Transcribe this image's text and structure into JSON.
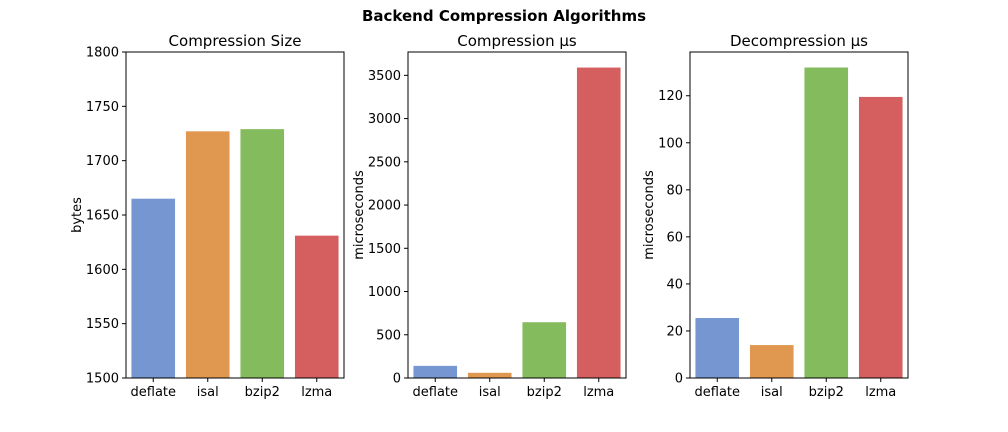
{
  "title": "Backend Compression Algorithms",
  "colors": [
    "#7596d0",
    "#e0974f",
    "#84bb5c",
    "#d55f5f"
  ],
  "chart_data": [
    {
      "type": "bar",
      "title": "Compression Size",
      "ylabel": "bytes",
      "xlabel": "",
      "categories": [
        "deflate",
        "isal",
        "bzip2",
        "lzma"
      ],
      "values": [
        1665,
        1727,
        1729,
        1631
      ],
      "ylim": [
        1500,
        1800
      ],
      "yticks": [
        1500,
        1550,
        1600,
        1650,
        1700,
        1750,
        1800
      ]
    },
    {
      "type": "bar",
      "title": "Compression μs",
      "ylabel": "microseconds",
      "xlabel": "",
      "categories": [
        "deflate",
        "isal",
        "bzip2",
        "lzma"
      ],
      "values": [
        140,
        60,
        645,
        3590
      ],
      "ylim": [
        0,
        3770
      ],
      "yticks": [
        0,
        500,
        1000,
        1500,
        2000,
        2500,
        3000,
        3500
      ]
    },
    {
      "type": "bar",
      "title": "Decompression μs",
      "ylabel": "microseconds",
      "xlabel": "",
      "categories": [
        "deflate",
        "isal",
        "bzip2",
        "lzma"
      ],
      "values": [
        25.5,
        14,
        132,
        119.5
      ],
      "ylim": [
        0,
        138.6
      ],
      "yticks": [
        0,
        20,
        40,
        60,
        80,
        100,
        120
      ]
    }
  ]
}
